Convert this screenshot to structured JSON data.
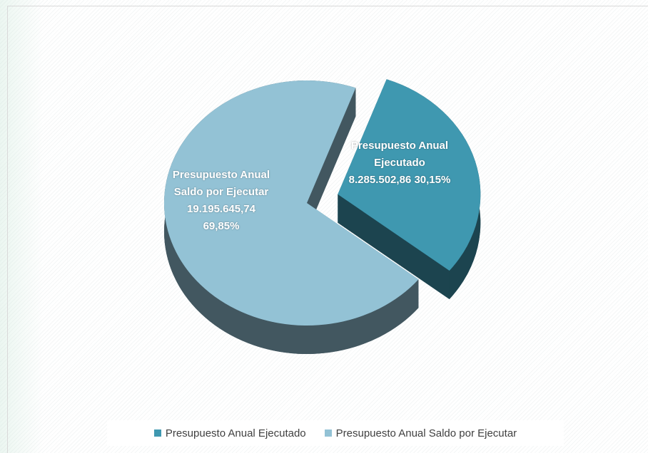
{
  "chart_data": {
    "type": "pie",
    "categories": [
      "Presupuesto Anual Ejecutado",
      "Presupuesto Anual Saldo por Ejecutar"
    ],
    "values": [
      8285502.86,
      19195645.74
    ],
    "value_labels": [
      "8.285.502,86",
      "19.195.645,74"
    ],
    "percentages": [
      30.15,
      69.85
    ],
    "percentage_labels": [
      "30,15%",
      "69,85%"
    ],
    "colors": [
      "#3f98b0",
      "#93c2d5"
    ],
    "legend": "bottom"
  }
}
